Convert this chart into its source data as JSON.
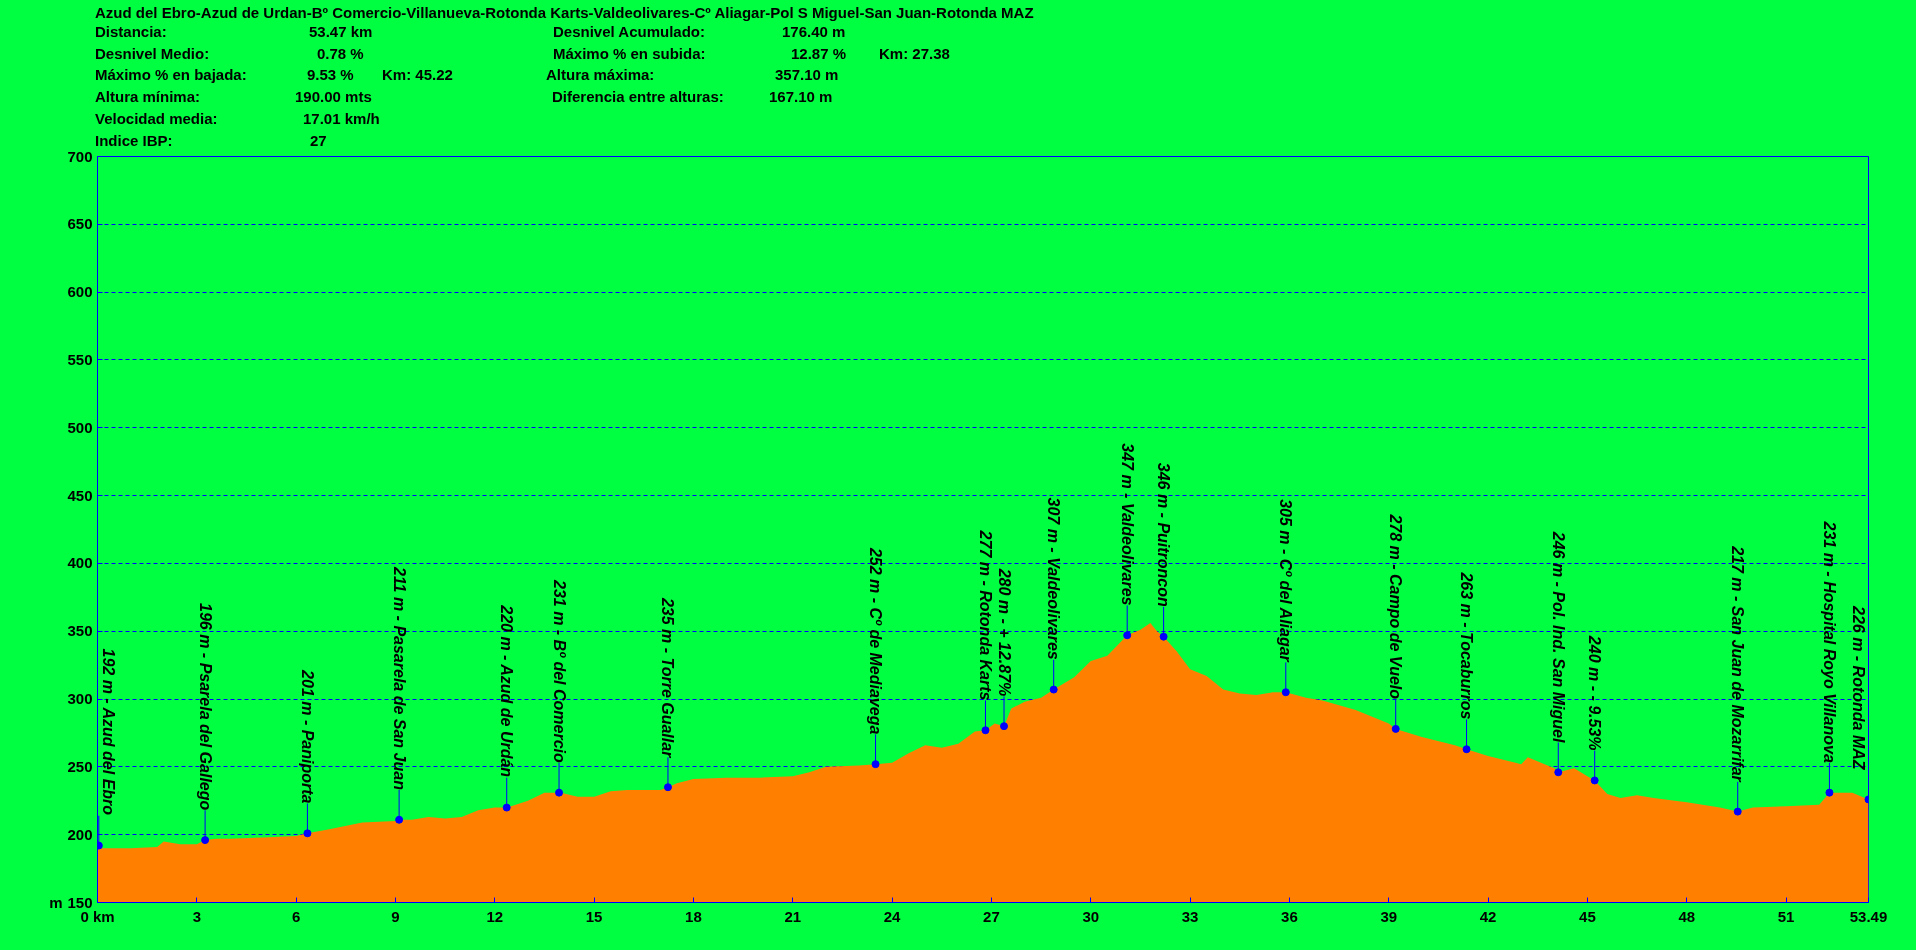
{
  "chart_data": {
    "type": "area",
    "title": "Azud del Ebro-Azud de Urdan-Bº Comercio-Villanueva-Rotonda Karts-Valdeolivares-Cº Aliagar-Pol S Miguel-San Juan-Rotonda MAZ",
    "ylabel": "m",
    "xlim": [
      0,
      53.49
    ],
    "ylim": [
      150,
      700
    ],
    "xticks": [
      {
        "value": 0,
        "label": "0 km"
      },
      3,
      6,
      9,
      12,
      15,
      18,
      21,
      24,
      27,
      30,
      33,
      36,
      39,
      42,
      45,
      48,
      51,
      53.49
    ],
    "yticks": [
      150,
      200,
      250,
      300,
      350,
      400,
      450,
      500,
      550,
      600,
      650,
      700
    ],
    "grid": "y",
    "x": [
      0,
      1,
      1.8,
      2,
      2.5,
      3,
      3.25,
      3.6,
      4,
      5,
      6,
      6.34,
      7,
      8,
      9,
      9.11,
      9.5,
      10,
      10.5,
      11,
      11.5,
      12,
      12.36,
      13,
      13.5,
      14,
      14.5,
      15,
      15.5,
      16,
      17,
      17.23,
      17.5,
      18,
      19,
      20,
      21,
      21.5,
      22,
      23,
      23.5,
      24,
      24.5,
      25,
      25.5,
      26,
      26.5,
      26.82,
      27.1,
      27.38,
      27.6,
      28,
      28.5,
      28.88,
      29.5,
      30,
      30.5,
      31.1,
      31.5,
      31.8,
      32.0,
      32.2,
      32.6,
      33,
      33.5,
      34,
      34.5,
      35,
      35.5,
      35.89,
      36.5,
      37,
      38,
      39,
      39.21,
      40,
      41,
      41.35,
      42,
      43,
      43.2,
      44,
      44.12,
      44.6,
      45,
      45.22,
      45.6,
      46,
      46.5,
      47,
      48,
      49,
      49.54,
      50,
      51,
      52,
      52.31,
      53,
      53.49
    ],
    "series": [
      {
        "color": "#ff8000",
        "values": [
          190,
          190,
          191,
          195,
          193,
          193,
          196,
          197,
          197,
          198,
          199,
          201,
          204,
          209,
          210,
          211,
          211,
          213,
          212,
          213,
          218,
          220,
          220,
          225,
          231,
          231,
          228,
          228,
          232,
          233,
          233,
          235,
          238,
          241,
          242,
          242,
          243,
          246,
          250,
          251,
          252,
          253,
          260,
          266,
          264,
          267,
          276,
          277,
          282,
          280,
          293,
          298,
          301,
          307,
          316,
          328,
          332,
          347,
          351,
          356,
          350,
          346,
          335,
          322,
          317,
          307,
          304,
          303,
          305,
          305,
          301,
          299,
          292,
          282,
          278,
          272,
          266,
          263,
          258,
          252,
          257,
          249,
          246,
          249,
          243,
          240,
          230,
          227,
          229,
          227,
          224,
          220,
          217,
          220,
          221,
          222,
          231,
          231,
          226
        ]
      },
      {
        "type": "scatter",
        "marker": "circle",
        "color": "#0000ff",
        "x": [
          0.04,
          3.25,
          6.34,
          9.11,
          12.36,
          13.94,
          17.23,
          23.5,
          26.82,
          27.38,
          28.88,
          31.1,
          32.2,
          35.89,
          39.21,
          41.35,
          44.12,
          45.22,
          49.54,
          52.31,
          53.49
        ],
        "values": [
          192,
          196,
          201,
          211,
          220,
          231,
          235,
          252,
          277,
          280,
          307,
          347,
          346,
          305,
          278,
          263,
          246,
          240,
          217,
          231,
          226
        ]
      }
    ],
    "annotations": [
      "Distancia:",
      "53.47 km",
      "Desnivel Acumulado:",
      "176.40 m",
      "Desnivel Medio:",
      "0.78 %",
      "Máximo % en subida:",
      "12.87 %",
      "Km: 27.38",
      "Máximo % en bajada:",
      "9.53 %",
      "Km: 45.22",
      "Altura máxima:",
      "357.10 m",
      "Altura mínima:",
      "190.00 mts",
      "Diferencia entre alturas:",
      "167.10 m",
      "Velocidad media:",
      "17.01 km/h",
      "Indice IBP:",
      "27",
      {
        "text": "192 m - Azud del Ebro",
        "x": 0.04,
        "y": 192
      },
      {
        "text": "196 m - Psarela del Gallego",
        "x": 3.25,
        "y": 196
      },
      {
        "text": "201 m - Paniporta",
        "x": 6.34,
        "y": 201
      },
      {
        "text": "211 m - Pasarela de San Juan",
        "x": 9.11,
        "y": 211
      },
      {
        "text": "220 m - Azud de Urdán",
        "x": 12.36,
        "y": 220
      },
      {
        "text": "231 m - Bº del Comercio",
        "x": 13.94,
        "y": 231
      },
      {
        "text": "235 m - Torre Guallar",
        "x": 17.23,
        "y": 235
      },
      {
        "text": "252 m - Cº de Mediavega",
        "x": 23.5,
        "y": 252
      },
      {
        "text": "277 m - Rotonda Karts",
        "x": 26.82,
        "y": 277
      },
      {
        "text": "280 m - + 12.87%",
        "x": 27.38,
        "y": 280
      },
      {
        "text": "307 m - Valdeolivares",
        "x": 28.88,
        "y": 307
      },
      {
        "text": "347 m - Valdeolivares",
        "x": 31.1,
        "y": 347
      },
      {
        "text": "346 m - Puitroncon",
        "x": 32.2,
        "y": 346
      },
      {
        "text": "305 m - Cº del Aliagar",
        "x": 35.89,
        "y": 305
      },
      {
        "text": "278 m - Campo de Vuelo",
        "x": 39.21,
        "y": 278
      },
      {
        "text": "263 m - Tocaburros",
        "x": 41.35,
        "y": 263
      },
      {
        "text": "246 m - Pol. Ind. San Miguel",
        "x": 44.12,
        "y": 246
      },
      {
        "text": "240 m - - 9.53%",
        "x": 45.22,
        "y": 240
      },
      {
        "text": "217 m - San Juan de Mozarrifar",
        "x": 49.54,
        "y": 217
      },
      {
        "text": "231 m - Hospital Royo Villanova",
        "x": 52.31,
        "y": 231
      },
      {
        "text": "226 m - Rotonda MAZ",
        "x": 53.49,
        "y": 226
      }
    ]
  }
}
